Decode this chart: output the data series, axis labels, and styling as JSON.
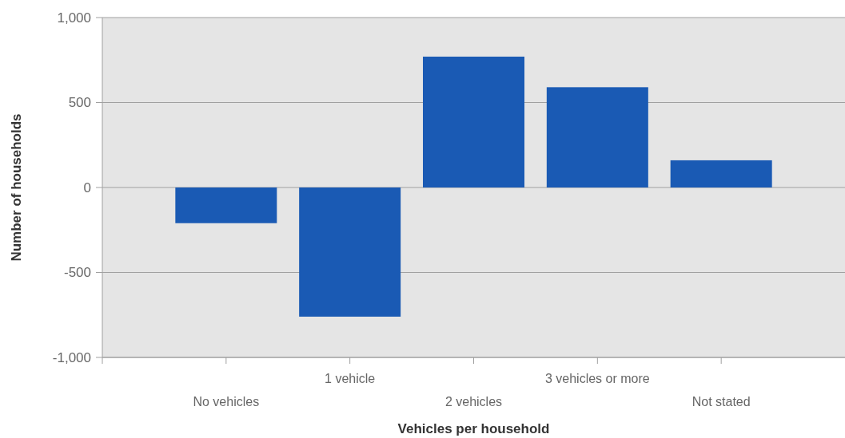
{
  "chart_data": {
    "type": "bar",
    "xlabel": "Vehicles per household",
    "ylabel": "Number of households",
    "categories": [
      "No vehicles",
      "1 vehicle",
      "2 vehicles",
      "3 vehicles or more",
      "Not stated"
    ],
    "values": [
      -210,
      -760,
      770,
      590,
      160
    ],
    "color": "#1a5ab4",
    "ylim": [
      -1000,
      1000
    ],
    "yticks": [
      {
        "value": -1000,
        "label": "-1,000"
      },
      {
        "value": -500,
        "label": "-500"
      },
      0,
      500,
      {
        "value": 1000,
        "label": "1,000"
      }
    ],
    "grid": "y"
  }
}
